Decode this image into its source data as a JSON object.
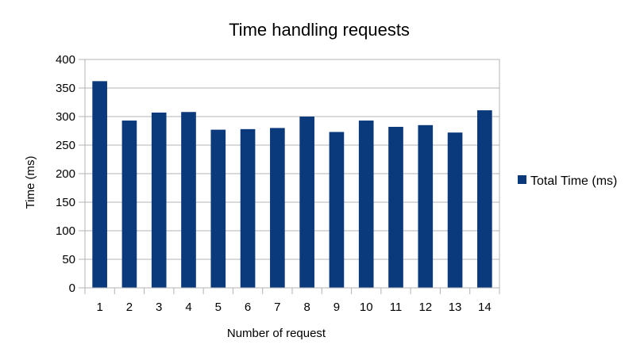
{
  "chart_data": {
    "type": "bar",
    "title": "Time handling requests",
    "xlabel": "Number of request",
    "ylabel": "Time (ms)",
    "categories": [
      "1",
      "2",
      "3",
      "4",
      "5",
      "6",
      "7",
      "8",
      "9",
      "10",
      "11",
      "12",
      "13",
      "14"
    ],
    "series": [
      {
        "name": "Total Time (ms)",
        "color": "#0a3a7b",
        "values": [
          362,
          293,
          307,
          308,
          277,
          278,
          280,
          300,
          273,
          293,
          282,
          285,
          272,
          311
        ]
      }
    ],
    "ylim": [
      0,
      400
    ],
    "yticks": [
      0,
      50,
      100,
      150,
      200,
      250,
      300,
      350,
      400
    ],
    "grid": true,
    "legend_position": "right"
  }
}
